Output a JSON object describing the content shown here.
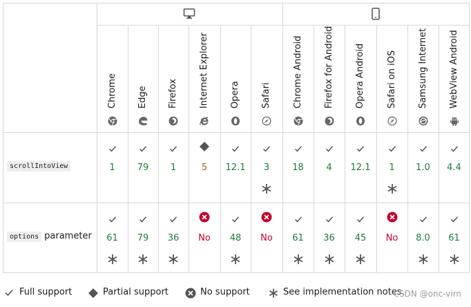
{
  "platforms": [
    {
      "name": "desktop",
      "icon": "desktop-icon"
    },
    {
      "name": "mobile",
      "icon": "mobile-icon"
    }
  ],
  "browsers": [
    {
      "label": "Chrome",
      "icon": "chrome-icon"
    },
    {
      "label": "Edge",
      "icon": "edge-icon"
    },
    {
      "label": "Firefox",
      "icon": "firefox-icon"
    },
    {
      "label": "Internet Explorer",
      "icon": "ie-icon"
    },
    {
      "label": "Opera",
      "icon": "opera-icon"
    },
    {
      "label": "Safari",
      "icon": "safari-icon"
    },
    {
      "label": "Chrome Android",
      "icon": "chrome-icon"
    },
    {
      "label": "Firefox for Android",
      "icon": "firefox-icon"
    },
    {
      "label": "Opera Android",
      "icon": "opera-icon"
    },
    {
      "label": "Safari on iOS",
      "icon": "safari-icon"
    },
    {
      "label": "Samsung Internet",
      "icon": "samsung-icon"
    },
    {
      "label": "WebView Android",
      "icon": "android-icon"
    }
  ],
  "features": [
    {
      "code": "scrollIntoView",
      "suffix": "",
      "support": [
        {
          "status": "full",
          "version": "1",
          "note": false
        },
        {
          "status": "full",
          "version": "79",
          "note": false
        },
        {
          "status": "full",
          "version": "1",
          "note": false
        },
        {
          "status": "partial",
          "version": "5",
          "note": false
        },
        {
          "status": "full",
          "version": "12.1",
          "note": false
        },
        {
          "status": "full",
          "version": "3",
          "note": true
        },
        {
          "status": "full",
          "version": "18",
          "note": false
        },
        {
          "status": "full",
          "version": "4",
          "note": false
        },
        {
          "status": "full",
          "version": "12.1",
          "note": false
        },
        {
          "status": "full",
          "version": "1",
          "note": true
        },
        {
          "status": "full",
          "version": "1.0",
          "note": false
        },
        {
          "status": "full",
          "version": "4.4",
          "note": false
        }
      ]
    },
    {
      "code": "options",
      "suffix": "parameter",
      "support": [
        {
          "status": "full",
          "version": "61",
          "note": true
        },
        {
          "status": "full",
          "version": "79",
          "note": true
        },
        {
          "status": "full",
          "version": "36",
          "note": true
        },
        {
          "status": "none",
          "version": "No",
          "note": false
        },
        {
          "status": "full",
          "version": "48",
          "note": true
        },
        {
          "status": "none",
          "version": "No",
          "note": false
        },
        {
          "status": "full",
          "version": "61",
          "note": true
        },
        {
          "status": "full",
          "version": "36",
          "note": true
        },
        {
          "status": "full",
          "version": "45",
          "note": true
        },
        {
          "status": "none",
          "version": "No",
          "note": false
        },
        {
          "status": "full",
          "version": "8.0",
          "note": true
        },
        {
          "status": "full",
          "version": "61",
          "note": true
        }
      ]
    }
  ],
  "legend": {
    "full": "Full support",
    "partial": "Partial support",
    "none": "No support",
    "notes": "See implementation notes."
  },
  "watermark": "CSDN @onc-virn",
  "colors": {
    "grid": "#d6d6d6",
    "full_version": "#1f7a3a",
    "partial_version": "#8a6b12",
    "no_version": "#c4002a",
    "icon": "#696969"
  }
}
